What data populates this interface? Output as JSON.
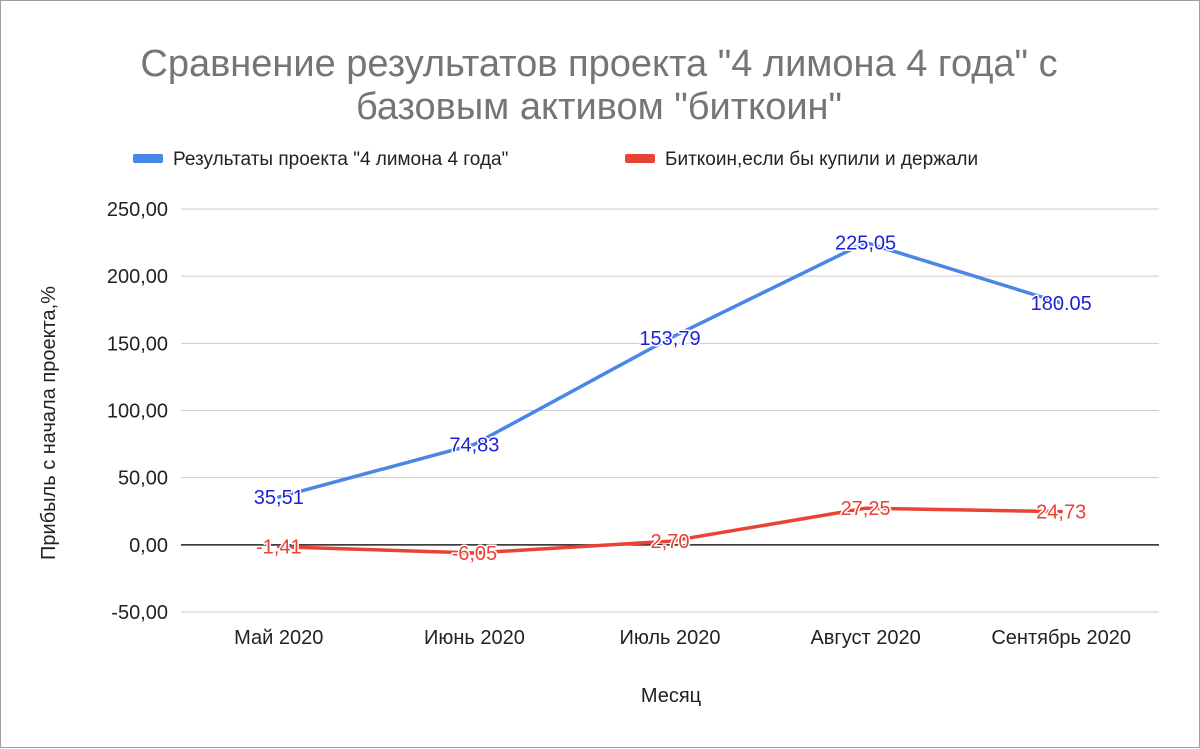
{
  "chart_data": {
    "type": "line",
    "title_lines": [
      "Сравнение результатов проекта \"4 лимона 4 года\" с",
      "базовым активом \"биткоин\""
    ],
    "xlabel": "Месяц",
    "ylabel": "Прибыль с начала проекта,%",
    "categories": [
      "Май 2020",
      "Июнь 2020",
      "Июль 2020",
      "Август 2020",
      "Сентябрь 2020"
    ],
    "ylim": [
      -50,
      250
    ],
    "yticks": [
      -50,
      0,
      50,
      100,
      150,
      200,
      250
    ],
    "ytick_labels": [
      "-50,00",
      "0,00",
      "50,00",
      "100,00",
      "150,00",
      "200,00",
      "250,00"
    ],
    "legend_position": "top",
    "grid": true,
    "series": [
      {
        "name": "Результаты проекта \"4 лимона 4 года\"",
        "color": "#4a86e8",
        "label_color": "#1f1fd6",
        "values": [
          35.51,
          74.83,
          153.79,
          225.05,
          180.05
        ],
        "labels": [
          "35,51",
          "74,83",
          "153,79",
          "225,05",
          "180.05"
        ]
      },
      {
        "name": "Биткоин,если бы купили и держали",
        "color": "#ea4335",
        "label_color": "#ea4335",
        "values": [
          -1.41,
          -6.05,
          2.7,
          27.25,
          24.73
        ],
        "labels": [
          "-1,41",
          "-6,05",
          "2,70",
          "27,25",
          "24,73"
        ]
      }
    ]
  }
}
